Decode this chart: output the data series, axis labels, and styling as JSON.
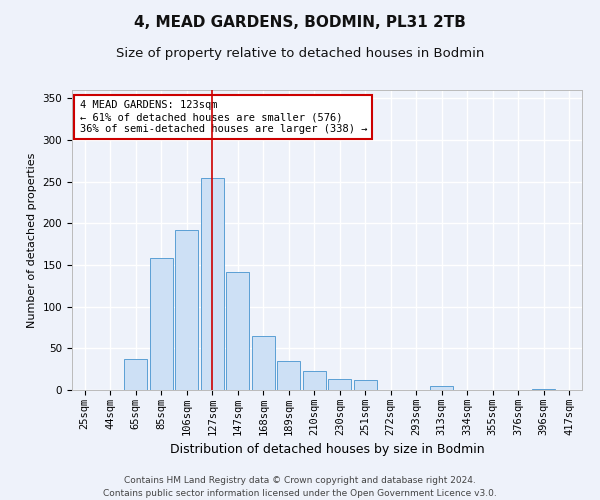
{
  "title1": "4, MEAD GARDENS, BODMIN, PL31 2TB",
  "title2": "Size of property relative to detached houses in Bodmin",
  "xlabel": "Distribution of detached houses by size in Bodmin",
  "ylabel": "Number of detached properties",
  "footer1": "Contains HM Land Registry data © Crown copyright and database right 2024.",
  "footer2": "Contains public sector information licensed under the Open Government Licence v3.0.",
  "categories": [
    "25sqm",
    "44sqm",
    "65sqm",
    "85sqm",
    "106sqm",
    "127sqm",
    "147sqm",
    "168sqm",
    "189sqm",
    "210sqm",
    "230sqm",
    "251sqm",
    "272sqm",
    "293sqm",
    "313sqm",
    "334sqm",
    "355sqm",
    "376sqm",
    "396sqm",
    "417sqm"
  ],
  "values": [
    0,
    0,
    37,
    158,
    192,
    255,
    142,
    65,
    35,
    23,
    13,
    12,
    0,
    0,
    5,
    0,
    0,
    0,
    1,
    0
  ],
  "bar_color": "#cde0f5",
  "bar_edge_color": "#5a9fd4",
  "highlight_index": 5,
  "highlight_color": "#cc0000",
  "annotation_text": "4 MEAD GARDENS: 123sqm\n← 61% of detached houses are smaller (576)\n36% of semi-detached houses are larger (338) →",
  "annotation_box_color": "#ffffff",
  "annotation_box_edge": "#cc0000",
  "ylim": [
    0,
    360
  ],
  "yticks": [
    0,
    50,
    100,
    150,
    200,
    250,
    300,
    350
  ],
  "bg_color": "#eef2fa",
  "grid_color": "#ffffff",
  "title1_fontsize": 11,
  "title2_fontsize": 9.5,
  "xlabel_fontsize": 9,
  "ylabel_fontsize": 8,
  "tick_fontsize": 7.5,
  "footer_fontsize": 6.5
}
